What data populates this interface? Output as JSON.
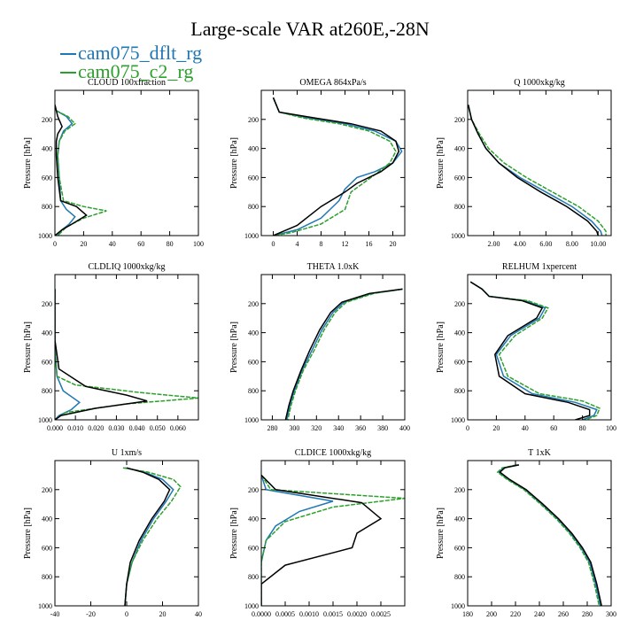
{
  "figure": {
    "title": "Large-scale VAR at260E,-28N",
    "legend": [
      {
        "label": "cam075_dflt_rg",
        "color": "#1f77b4"
      },
      {
        "label": "cam075_c2_rg",
        "color": "#2ca02c"
      }
    ],
    "series_colors": [
      "#1f77b4",
      "#2ca02c",
      "#000000"
    ]
  },
  "chart_data": [
    {
      "type": "line",
      "title": "CLOUD 100xfraction",
      "ylabel": "Pressure [hPa]",
      "xlim": [
        0,
        100
      ],
      "ylim": [
        1000,
        0
      ],
      "xticks": [
        0,
        20,
        40,
        60,
        80,
        100
      ],
      "xticklabels": [
        "0",
        "20",
        "40",
        "60",
        "80",
        "100"
      ],
      "yticks": [
        200,
        400,
        600,
        800,
        1000
      ],
      "series": [
        {
          "name": "cam075_dflt_rg",
          "x": [
            0,
            1,
            8,
            12,
            6,
            3,
            2,
            3,
            4,
            8,
            14,
            10,
            5,
            2
          ],
          "y": [
            100,
            140,
            180,
            230,
            280,
            350,
            450,
            600,
            760,
            820,
            870,
            920,
            960,
            1000
          ]
        },
        {
          "name": "cam075_c2_rg",
          "x": [
            0,
            1,
            9,
            14,
            7,
            3,
            2,
            3,
            6,
            20,
            36,
            20,
            8,
            2
          ],
          "y": [
            100,
            140,
            180,
            230,
            280,
            350,
            450,
            600,
            760,
            800,
            830,
            880,
            940,
            1000
          ]
        },
        {
          "x": [
            0,
            1,
            2,
            5,
            2,
            1,
            1,
            2,
            4,
            15,
            22,
            12,
            5,
            0
          ],
          "y": [
            100,
            140,
            180,
            250,
            300,
            350,
            450,
            600,
            760,
            800,
            860,
            920,
            960,
            1000
          ]
        }
      ]
    },
    {
      "type": "line",
      "title": "OMEGA 864xPa/s",
      "ylabel": "Pressure [hPa]",
      "xlim": [
        -2,
        22
      ],
      "ylim": [
        1000,
        0
      ],
      "xticks": [
        0,
        4,
        8,
        12,
        16,
        20
      ],
      "xticklabels": [
        "0",
        "4",
        "8",
        "12",
        "16",
        "20"
      ],
      "yticks": [
        200,
        400,
        600,
        800,
        1000
      ],
      "series": [
        {
          "name": "cam075_dflt_rg",
          "x": [
            0,
            1,
            6,
            12,
            17,
            20.5,
            21.5,
            20,
            17,
            14,
            12,
            11,
            8,
            4,
            0
          ],
          "y": [
            50,
            150,
            190,
            230,
            280,
            350,
            420,
            500,
            560,
            600,
            680,
            760,
            880,
            960,
            1000
          ]
        },
        {
          "name": "cam075_c2_rg",
          "x": [
            0,
            1,
            5,
            11,
            16,
            19.5,
            20.5,
            19.5,
            17,
            15,
            13,
            12,
            8,
            3,
            0
          ],
          "y": [
            50,
            150,
            190,
            230,
            280,
            350,
            420,
            500,
            580,
            640,
            700,
            820,
            920,
            980,
            1000
          ]
        },
        {
          "x": [
            0,
            1,
            7,
            13,
            18,
            20.5,
            21,
            20,
            18,
            14,
            12,
            8,
            4,
            0
          ],
          "y": [
            50,
            150,
            190,
            230,
            280,
            350,
            420,
            500,
            560,
            640,
            700,
            800,
            930,
            1000
          ]
        }
      ]
    },
    {
      "type": "line",
      "title": "Q 1000xkg/kg",
      "ylabel": "Pressure [hPa]",
      "xlim": [
        0,
        11
      ],
      "ylim": [
        1000,
        0
      ],
      "xticks": [
        2,
        4,
        6,
        8,
        10
      ],
      "xticklabels": [
        "2.00",
        "4.00",
        "6.00",
        "8.00",
        "10.00"
      ],
      "yticks": [
        200,
        400,
        600,
        800,
        1000
      ],
      "series": [
        {
          "name": "cam075_dflt_rg",
          "x": [
            0.05,
            0.3,
            0.8,
            1.4,
            2.4,
            4,
            6,
            8,
            9.5,
            10.2,
            10.3
          ],
          "y": [
            100,
            200,
            300,
            400,
            500,
            600,
            700,
            800,
            900,
            970,
            1000
          ]
        },
        {
          "name": "cam075_c2_rg",
          "x": [
            0.05,
            0.3,
            0.9,
            1.6,
            2.8,
            4.5,
            6.5,
            8.5,
            10,
            10.6,
            10.6
          ],
          "y": [
            100,
            200,
            300,
            400,
            500,
            600,
            700,
            800,
            900,
            970,
            1000
          ]
        },
        {
          "x": [
            0.05,
            0.3,
            0.8,
            1.4,
            2.4,
            3.8,
            5.6,
            7.6,
            9.2,
            9.9,
            10
          ],
          "y": [
            100,
            200,
            300,
            400,
            500,
            600,
            700,
            800,
            900,
            970,
            1000
          ]
        }
      ]
    },
    {
      "type": "line",
      "title": "CLDLIQ 1000xkg/kg",
      "ylabel": "Pressure [hPa]",
      "xlim": [
        0,
        0.07
      ],
      "ylim": [
        1000,
        0
      ],
      "xticks": [
        0,
        0.01,
        0.02,
        0.03,
        0.04,
        0.05,
        0.06
      ],
      "xticklabels": [
        "0.000",
        "0.010",
        "0.020",
        "0.030",
        "0.040",
        "0.050",
        "0.060"
      ],
      "yticks": [
        200,
        400,
        600,
        800,
        1000
      ],
      "series": [
        {
          "name": "cam075_dflt_rg",
          "x": [
            0,
            0,
            0.001,
            0.004,
            0.012,
            0.008,
            0.002,
            0
          ],
          "y": [
            100,
            500,
            700,
            800,
            880,
            930,
            970,
            1000
          ]
        },
        {
          "name": "cam075_c2_rg",
          "x": [
            0,
            0,
            0.001,
            0.01,
            0.04,
            0.07,
            0.035,
            0.005,
            0
          ],
          "y": [
            100,
            500,
            700,
            760,
            810,
            850,
            890,
            950,
            1000
          ]
        },
        {
          "x": [
            0,
            0,
            0.002,
            0.015,
            0.035,
            0.045,
            0.02,
            0.003,
            0
          ],
          "y": [
            100,
            450,
            650,
            770,
            830,
            870,
            920,
            970,
            1000
          ]
        }
      ]
    },
    {
      "type": "line",
      "title": "THETA 1.0xK",
      "ylabel": "Pressure [hPa]",
      "xlim": [
        270,
        400
      ],
      "ylim": [
        1000,
        0
      ],
      "xticks": [
        280,
        300,
        320,
        340,
        360,
        380,
        400
      ],
      "xticklabels": [
        "280",
        "300",
        "320",
        "340",
        "360",
        "380",
        "400"
      ],
      "yticks": [
        200,
        400,
        600,
        800,
        1000
      ],
      "series": [
        {
          "name": "cam075_dflt_rg",
          "x": [
            398,
            370,
            345,
            335,
            325,
            316,
            307,
            300,
            296,
            293
          ],
          "y": [
            100,
            130,
            190,
            260,
            380,
            520,
            660,
            800,
            900,
            1000
          ]
        },
        {
          "name": "cam075_c2_rg",
          "x": [
            398,
            372,
            347,
            337,
            327,
            318,
            308,
            301,
            297,
            294
          ],
          "y": [
            100,
            130,
            190,
            260,
            380,
            520,
            660,
            800,
            900,
            1000
          ]
        },
        {
          "x": [
            398,
            368,
            343,
            333,
            323,
            314,
            306,
            299,
            295,
            292
          ],
          "y": [
            100,
            130,
            190,
            260,
            380,
            520,
            660,
            800,
            900,
            1000
          ]
        }
      ]
    },
    {
      "type": "line",
      "title": "RELHUM 1xpercent",
      "ylabel": "Pressure [hPa]",
      "xlim": [
        0,
        100
      ],
      "ylim": [
        1000,
        0
      ],
      "xticks": [
        0,
        20,
        40,
        60,
        80,
        100
      ],
      "xticklabels": [
        "0",
        "20",
        "40",
        "60",
        "80",
        "100"
      ],
      "yticks": [
        200,
        400,
        600,
        800,
        1000
      ],
      "series": [
        {
          "name": "cam075_dflt_rg",
          "x": [
            2,
            10,
            15,
            40,
            54,
            50,
            30,
            20,
            25,
            45,
            75,
            90,
            88,
            80
          ],
          "y": [
            50,
            100,
            150,
            180,
            230,
            300,
            420,
            550,
            700,
            820,
            880,
            930,
            970,
            1000
          ]
        },
        {
          "name": "cam075_c2_rg",
          "x": [
            2,
            10,
            15,
            42,
            56,
            52,
            33,
            22,
            28,
            50,
            80,
            92,
            90,
            82
          ],
          "y": [
            50,
            100,
            150,
            180,
            230,
            300,
            420,
            550,
            700,
            820,
            870,
            920,
            970,
            1000
          ]
        },
        {
          "x": [
            2,
            10,
            15,
            38,
            52,
            48,
            28,
            19,
            22,
            40,
            70,
            85,
            85,
            75
          ],
          "y": [
            50,
            100,
            150,
            180,
            230,
            300,
            420,
            550,
            700,
            820,
            880,
            930,
            970,
            1000
          ]
        }
      ]
    },
    {
      "type": "line",
      "title": "U 1xm/s",
      "ylabel": "Pressure [hPa]",
      "xlim": [
        -40,
        40
      ],
      "ylim": [
        1000,
        0
      ],
      "xticks": [
        -40,
        -20,
        0,
        20,
        40
      ],
      "xticklabels": [
        "-40",
        "-20",
        "0",
        "20",
        "40"
      ],
      "yticks": [
        200,
        400,
        600,
        800,
        1000
      ],
      "series": [
        {
          "name": "cam075_dflt_rg",
          "x": [
            -1,
            10,
            20,
            26,
            22,
            15,
            8,
            3,
            0,
            -1
          ],
          "y": [
            50,
            80,
            130,
            200,
            280,
            400,
            550,
            700,
            850,
            1000
          ]
        },
        {
          "name": "cam075_c2_rg",
          "x": [
            -2,
            12,
            26,
            30,
            25,
            17,
            9,
            3,
            0,
            -1
          ],
          "y": [
            50,
            80,
            130,
            180,
            280,
            400,
            550,
            700,
            850,
            1000
          ]
        },
        {
          "x": [
            0,
            9,
            18,
            24,
            21,
            14,
            7,
            2,
            0,
            -1
          ],
          "y": [
            50,
            80,
            130,
            200,
            280,
            400,
            550,
            700,
            850,
            1000
          ]
        }
      ]
    },
    {
      "type": "line",
      "title": "CLDICE 1000xkg/kg",
      "ylabel": "Pressure [hPa]",
      "xlim": [
        0,
        0.003
      ],
      "ylim": [
        1000,
        0
      ],
      "xticks": [
        0,
        0.0005,
        0.001,
        0.0015,
        0.002,
        0.0025
      ],
      "xticklabels": [
        "0.0000",
        "0.0005",
        "0.0010",
        "0.0015",
        "0.0020",
        "0.0025"
      ],
      "yticks": [
        200,
        400,
        600,
        800,
        1000
      ],
      "series": [
        {
          "name": "cam075_dflt_rg",
          "x": [
            0,
            0.0001,
            0.0015,
            0.0008,
            0.0003,
            0.0001,
            0,
            0
          ],
          "y": [
            100,
            200,
            280,
            350,
            450,
            550,
            700,
            1000
          ]
        },
        {
          "name": "cam075_c2_rg",
          "x": [
            0,
            0.0002,
            0.003,
            0.0015,
            0.0005,
            0.0001,
            0,
            0
          ],
          "y": [
            100,
            200,
            260,
            320,
            420,
            550,
            700,
            1000
          ]
        },
        {
          "x": [
            0,
            0.0003,
            0.0021,
            0.0025,
            0.002,
            0.0019,
            0.0005,
            0,
            0
          ],
          "y": [
            100,
            200,
            290,
            400,
            500,
            600,
            720,
            850,
            1000
          ]
        }
      ]
    },
    {
      "type": "line",
      "title": "T 1xK",
      "ylabel": "Pressure [hPa]",
      "xlim": [
        180,
        300
      ],
      "ylim": [
        1000,
        0
      ],
      "xticks": [
        180,
        200,
        220,
        240,
        260,
        280,
        300
      ],
      "xticklabels": [
        "180",
        "200",
        "220",
        "240",
        "260",
        "280",
        "300"
      ],
      "yticks": [
        200,
        400,
        600,
        800,
        1000
      ],
      "series": [
        {
          "name": "cam075_dflt_rg",
          "x": [
            222,
            210,
            206,
            214,
            228,
            242,
            255,
            266,
            275,
            282,
            287,
            291
          ],
          "y": [
            30,
            50,
            80,
            130,
            200,
            300,
            400,
            500,
            600,
            700,
            850,
            1000
          ]
        },
        {
          "name": "cam075_c2_rg",
          "x": [
            221,
            209,
            205,
            213,
            227,
            241,
            254,
            265,
            274,
            281,
            286,
            290
          ],
          "y": [
            30,
            50,
            80,
            130,
            200,
            300,
            400,
            500,
            600,
            700,
            850,
            1000
          ]
        },
        {
          "x": [
            223,
            211,
            207,
            215,
            229,
            243,
            256,
            267,
            276,
            283,
            288,
            292
          ],
          "y": [
            30,
            50,
            80,
            130,
            200,
            300,
            400,
            500,
            600,
            700,
            850,
            1000
          ]
        }
      ]
    }
  ]
}
